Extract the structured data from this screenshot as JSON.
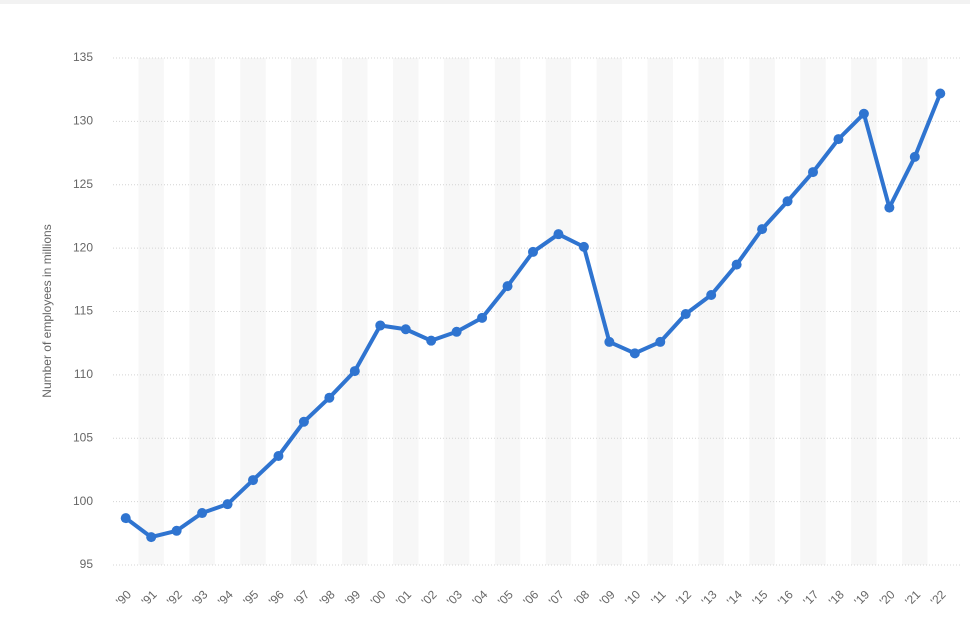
{
  "chart_data": {
    "type": "line",
    "y_label": "Number of employees in millions",
    "categories": [
      "'90",
      "'91",
      "'92",
      "'93",
      "'94",
      "'95",
      "'96",
      "'97",
      "'98",
      "'99",
      "'00",
      "'01",
      "'02",
      "'03",
      "'04",
      "'05",
      "'06",
      "'07",
      "'08",
      "'09",
      "'10",
      "'11",
      "'12",
      "'13",
      "'14",
      "'15",
      "'16",
      "'17",
      "'18",
      "'19",
      "'20",
      "'21",
      "'22"
    ],
    "series": [
      {
        "color": "#2f74d0",
        "values": [
          98.7,
          97.2,
          97.7,
          99.1,
          99.8,
          101.7,
          103.6,
          106.3,
          108.2,
          110.3,
          113.9,
          113.6,
          112.7,
          113.4,
          114.5,
          117.0,
          119.7,
          121.1,
          120.1,
          112.6,
          111.7,
          112.6,
          114.8,
          116.3,
          118.7,
          121.5,
          123.7,
          126.0,
          128.6,
          130.6,
          123.2,
          127.2,
          132.2
        ]
      }
    ],
    "ylim": [
      95,
      135
    ],
    "yticks": [
      95,
      100,
      105,
      110,
      115,
      120,
      125,
      130,
      135
    ],
    "grid": true
  }
}
